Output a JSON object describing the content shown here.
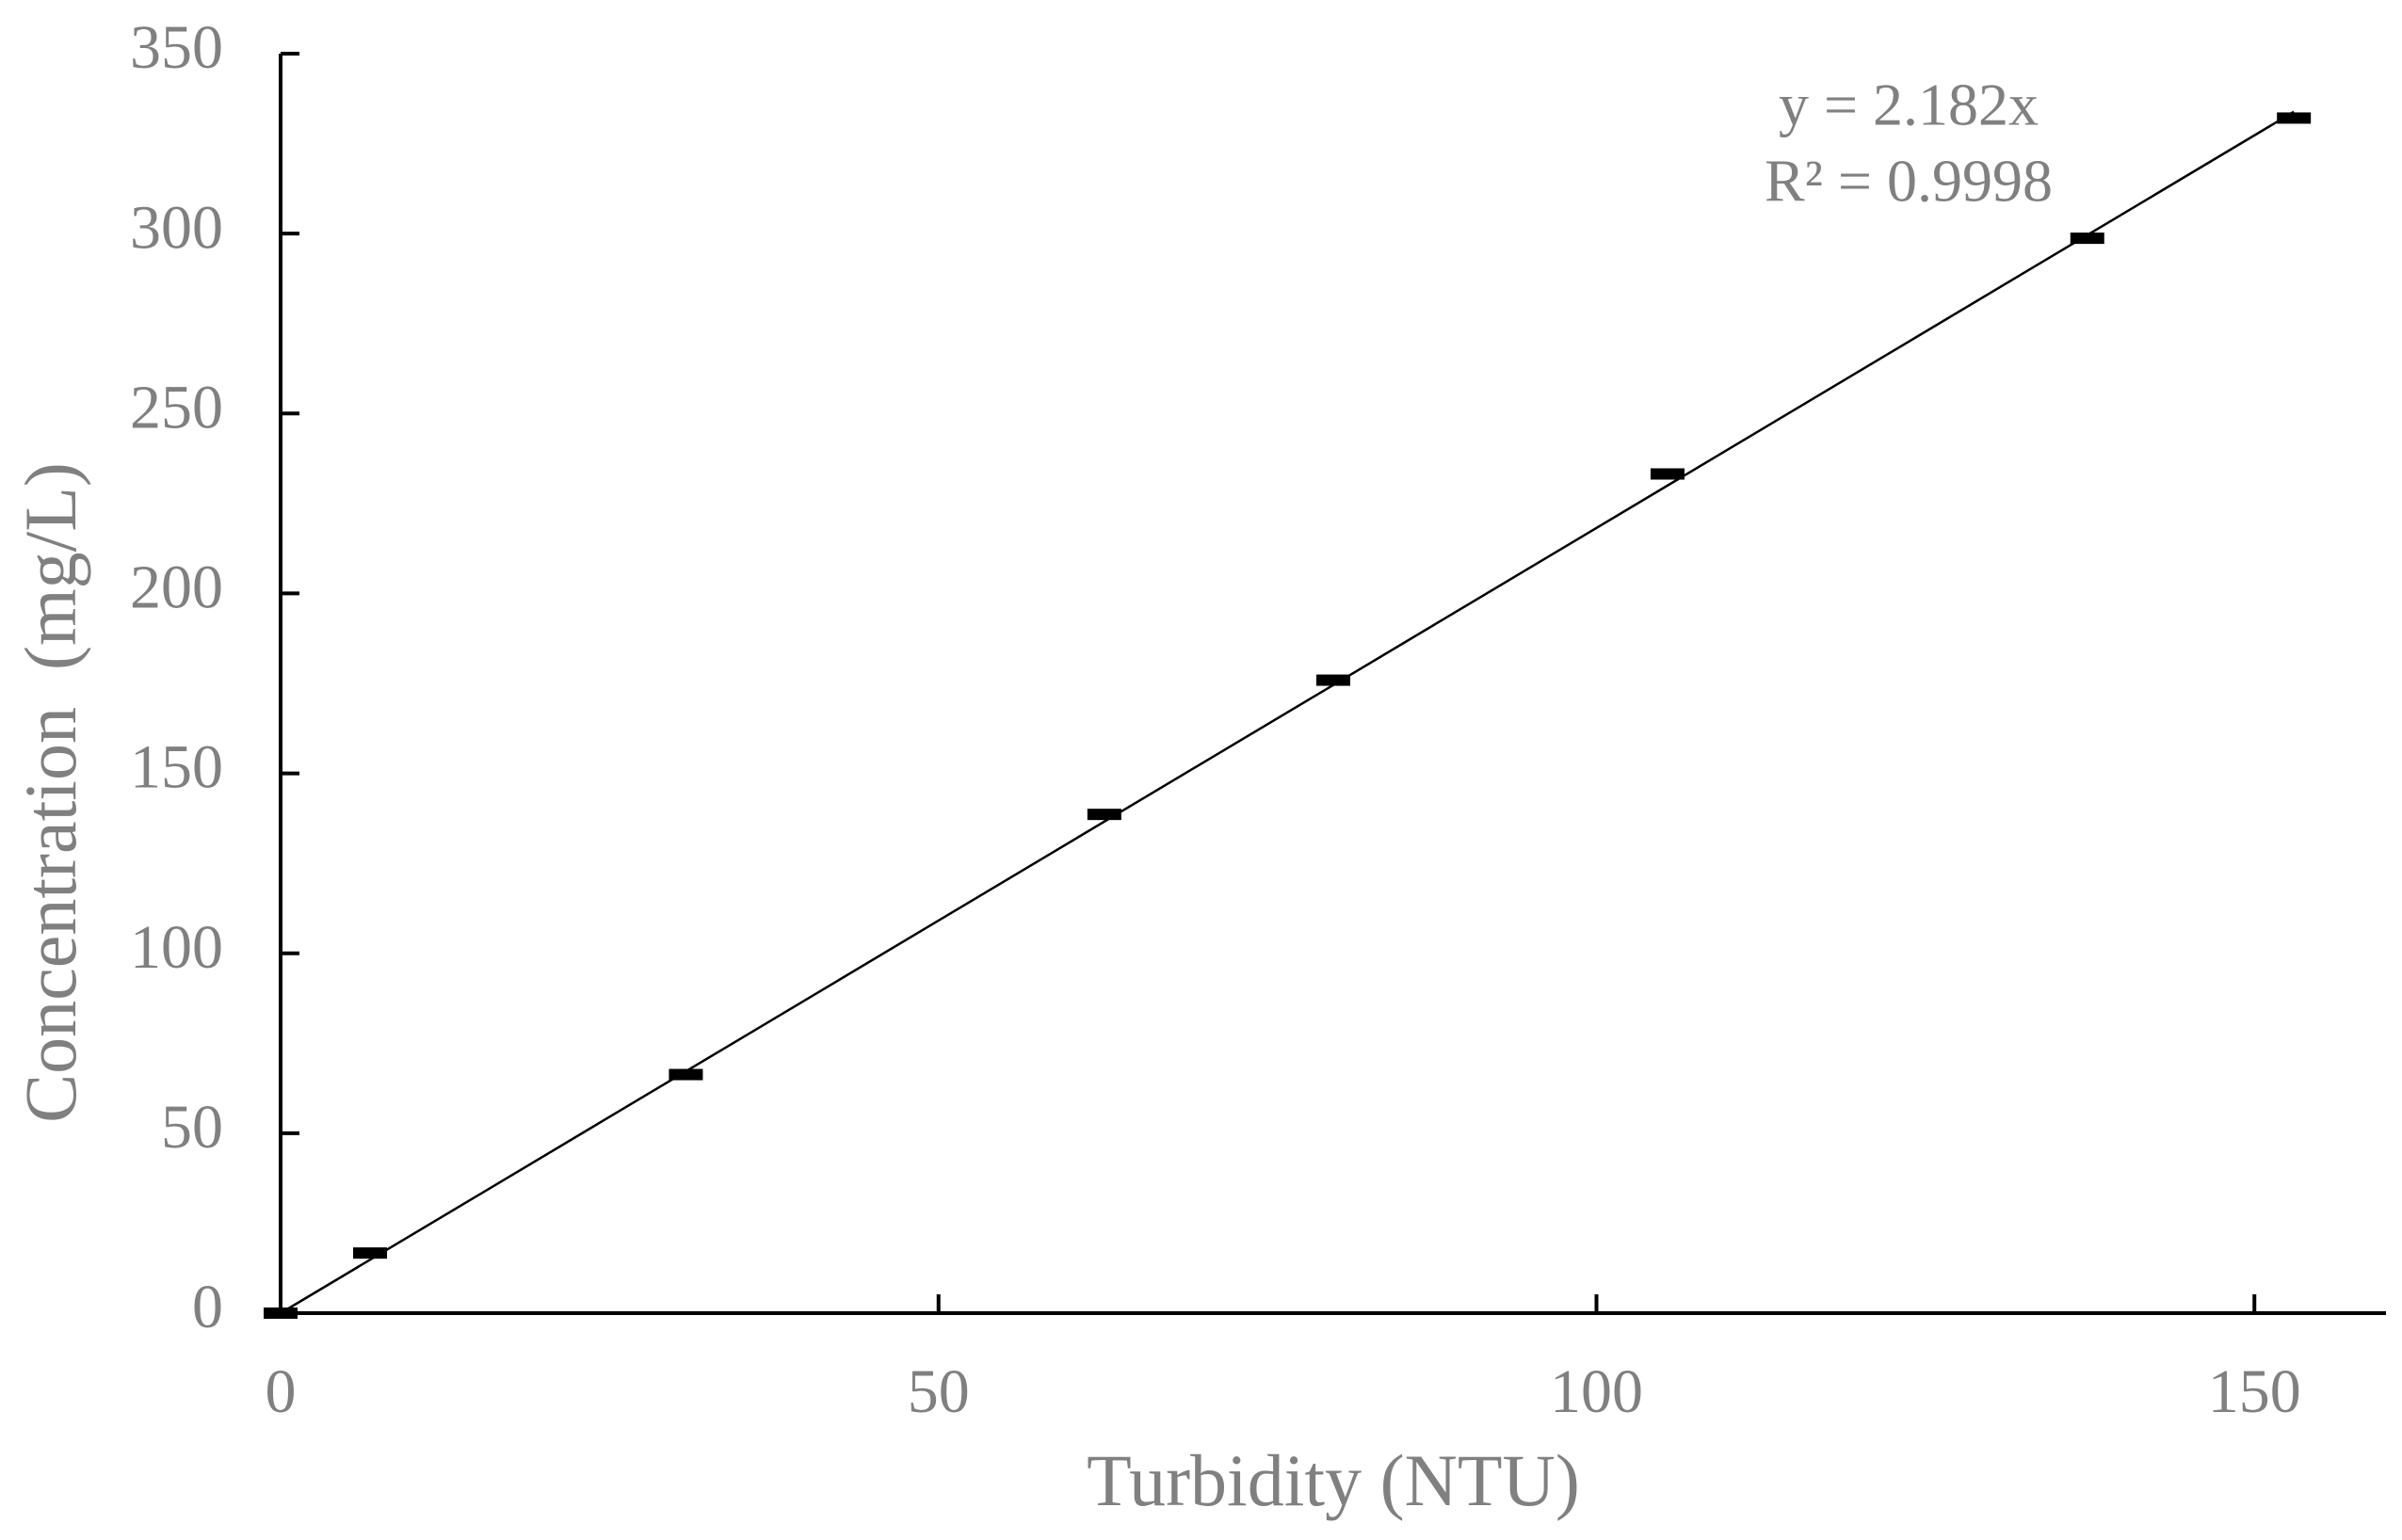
{
  "chart_data": {
    "type": "scatter",
    "x_label": "Turbidity (NTU)",
    "y_label": "Concentration  (mg/L)",
    "annotations": [
      "y = 2.182x",
      "R² = 0.9998"
    ],
    "series": [
      {
        "name": "Concentration",
        "color": "#000000",
        "x": [
          0,
          6.8,
          30.8,
          62.6,
          80.0,
          105.4,
          137.3,
          153.0
        ],
        "values": [
          0,
          16.7,
          66.3,
          138.6,
          175.9,
          233.2,
          298.7,
          332.1
        ]
      }
    ],
    "trendline": {
      "slope": 2.182,
      "color": "#000000"
    },
    "xlim": [
      0,
      160
    ],
    "xticks": [
      0,
      50,
      100,
      150
    ],
    "ylim": [
      0,
      350
    ],
    "yticks": [
      0,
      50,
      100,
      150,
      200,
      250,
      300,
      350
    ],
    "grid": false
  }
}
